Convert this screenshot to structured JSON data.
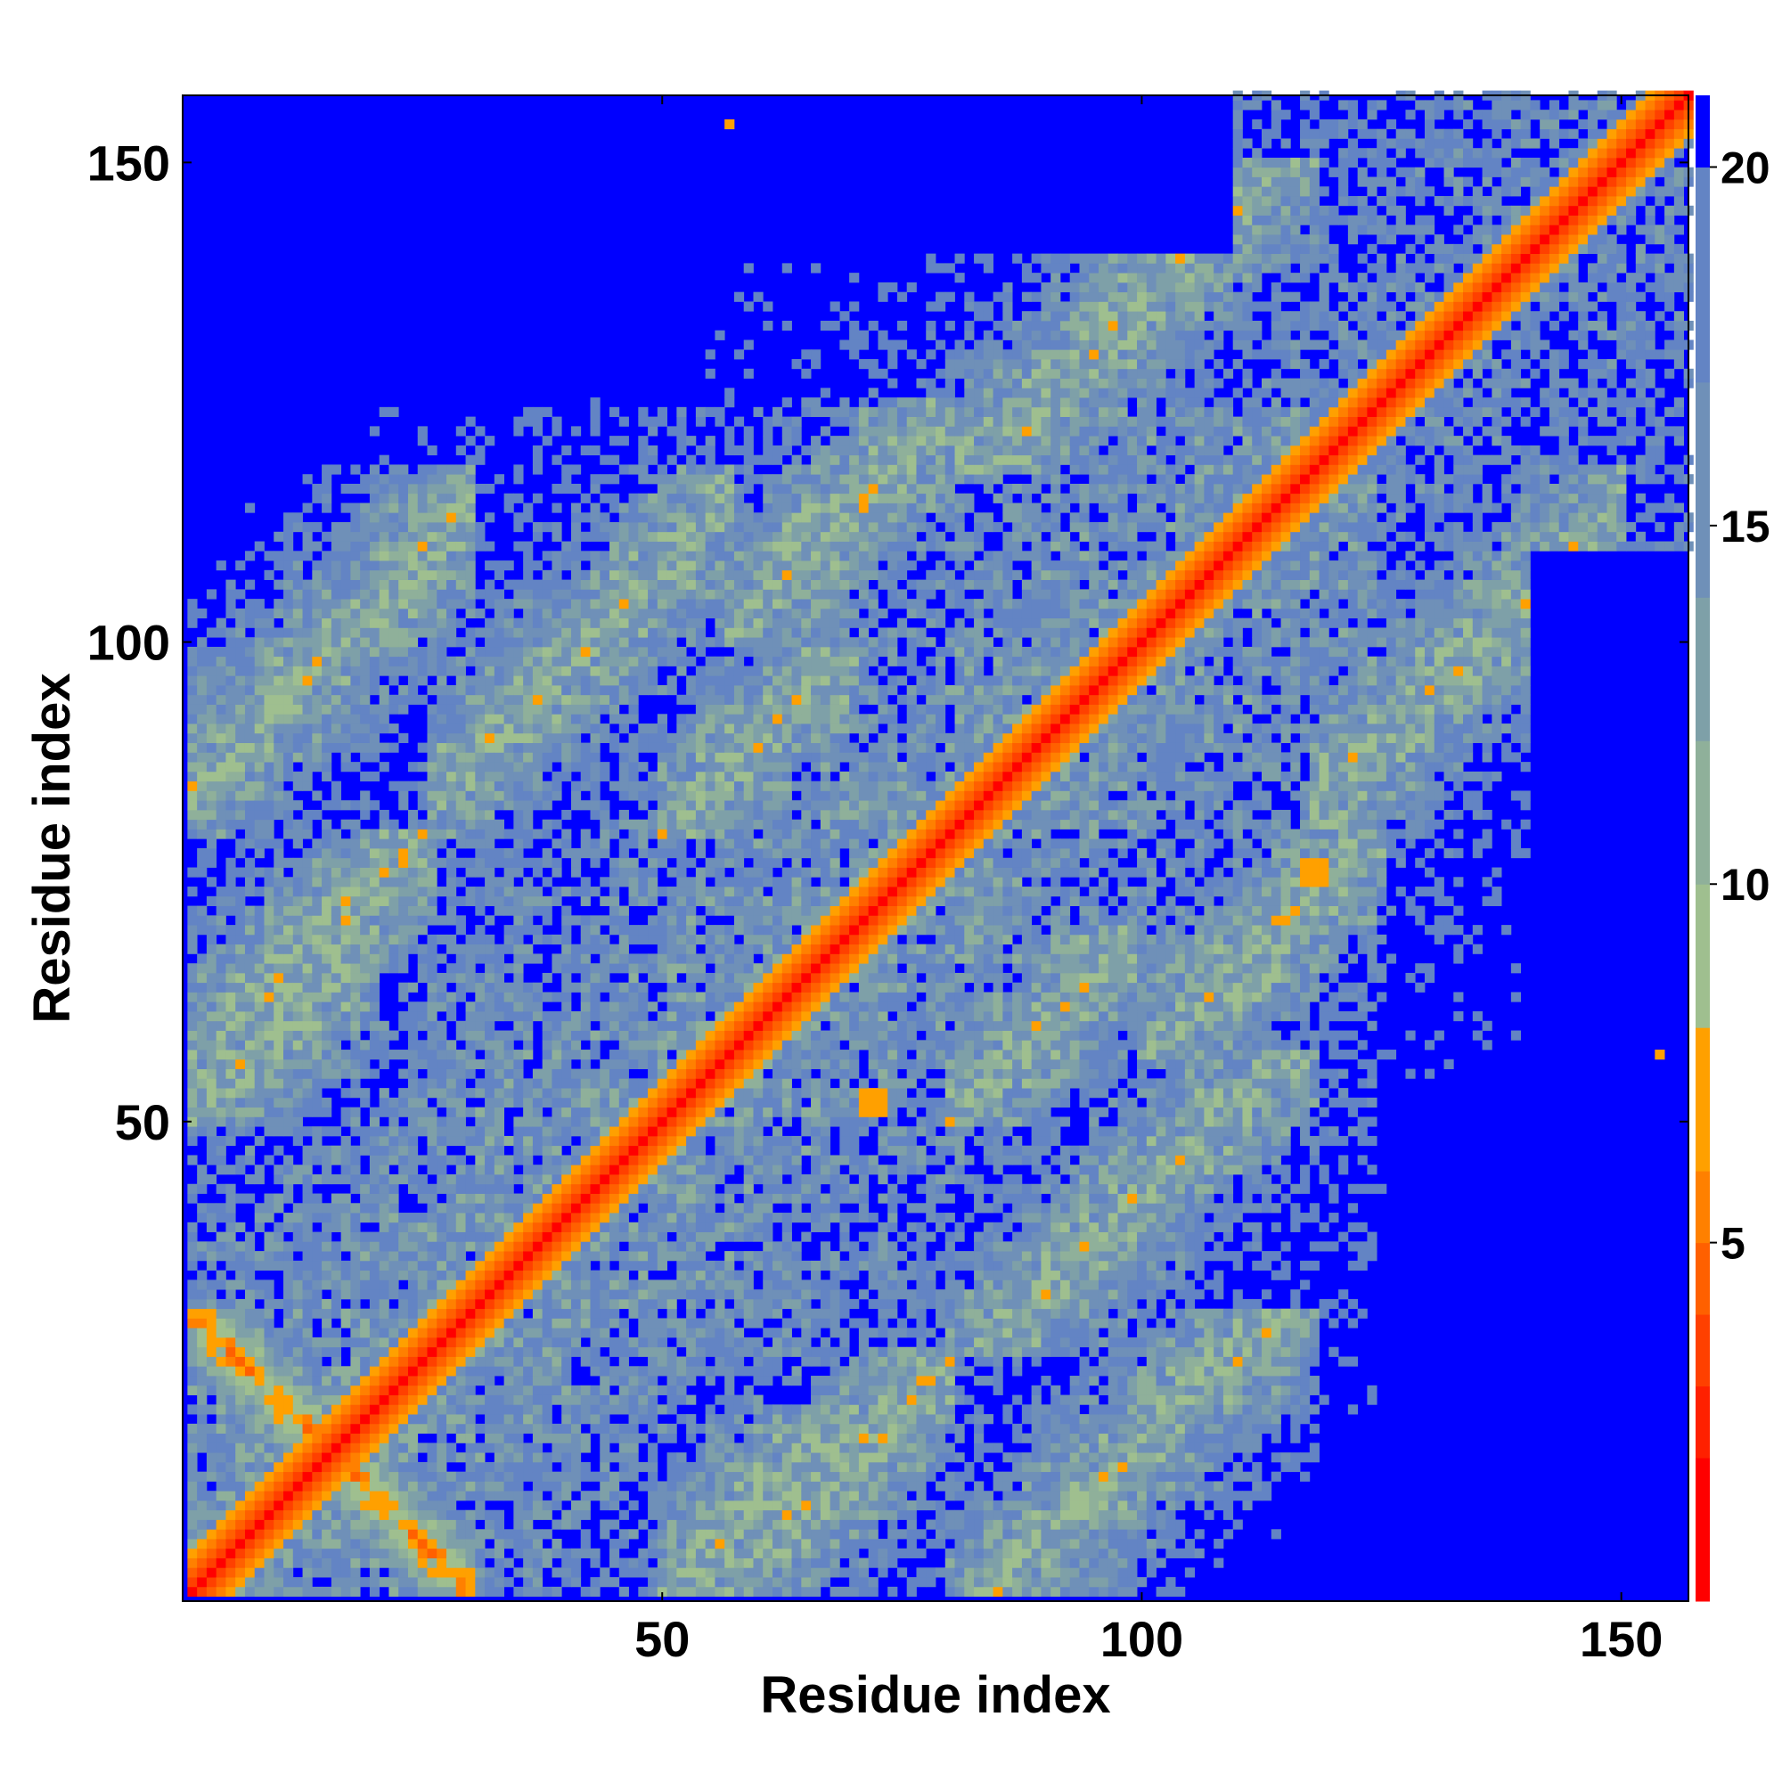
{
  "chart_data": {
    "type": "heatmap",
    "title": "",
    "xlabel": "Residue index",
    "ylabel": "Residue index",
    "n_residues": 157,
    "xlim": [
      1,
      157
    ],
    "ylim": [
      1,
      157
    ],
    "x_ticks": [
      50,
      100,
      150
    ],
    "y_ticks": [
      50,
      100,
      150
    ],
    "colorbar": {
      "range": [
        0,
        21
      ],
      "ticks": [
        5,
        10,
        15,
        20
      ],
      "colors": [
        "#ff0000",
        "#ff2000",
        "#ff4000",
        "#ff6000",
        "#ff8000",
        "#ffa000",
        "#9fbf8f",
        "#8fb09a",
        "#7ea0a8",
        "#6f90b8",
        "#6384c4",
        "#0000ff"
      ],
      "bounds": [
        0,
        2,
        3,
        4,
        5,
        6,
        8,
        10,
        12,
        14,
        17,
        20,
        21
      ]
    },
    "color_meaning": "Pairwise residue distance matrix; red/orange = short distance (contacts), green-grey = intermediate, blue = distance >= 20",
    "contact_features": [
      {
        "kind": "main diagonal",
        "residues": [
          1,
          157
        ]
      },
      {
        "kind": "helix",
        "residues": [
          1,
          26
        ]
      },
      {
        "kind": "helix",
        "residues": [
          26,
          57
        ]
      },
      {
        "kind": "helix",
        "residues": [
          57,
          80
        ]
      },
      {
        "kind": "helix",
        "residues": [
          80,
          118
        ]
      },
      {
        "kind": "helix",
        "residues": [
          118,
          157
        ]
      },
      {
        "kind": "anti-parallel",
        "pair": [
          [
            1,
            30
          ],
          [
            30,
            1
          ]
        ]
      },
      {
        "kind": "parallel",
        "pair": [
          [
            1,
            20
          ],
          [
            50,
            70
          ]
        ]
      },
      {
        "kind": "parallel",
        "pair": [
          [
            50,
            70
          ],
          [
            80,
            100
          ]
        ]
      },
      {
        "kind": "cluster",
        "at": [
          118,
          76
        ]
      },
      {
        "kind": "cluster",
        "at": [
          72,
          52
        ]
      },
      {
        "kind": "isolated",
        "at": [
          57,
          154
        ]
      },
      {
        "kind": "isolated",
        "at": [
          154,
          57
        ]
      }
    ]
  }
}
